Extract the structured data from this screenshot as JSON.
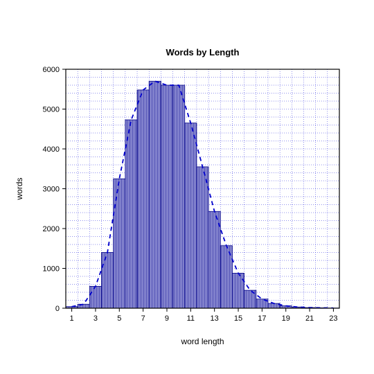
{
  "chart": {
    "type": "histogram",
    "title": "Words by Length",
    "title_fontsize": 13,
    "xlabel": "word length",
    "ylabel": "words",
    "label_fontsize": 12,
    "tick_fontsize": 11,
    "x_categories": [
      1,
      2,
      3,
      4,
      5,
      6,
      7,
      8,
      9,
      10,
      11,
      12,
      13,
      14,
      15,
      16,
      17,
      18,
      19,
      20,
      21,
      22,
      23
    ],
    "x_tick_labels": [
      1,
      3,
      5,
      7,
      9,
      11,
      13,
      15,
      17,
      19,
      21,
      23
    ],
    "values": [
      40,
      100,
      550,
      1400,
      3250,
      4730,
      5480,
      5700,
      5600,
      5600,
      4650,
      3550,
      2430,
      1570,
      880,
      450,
      230,
      120,
      60,
      30,
      15,
      10,
      5
    ],
    "ylim": [
      0,
      6000
    ],
    "ytick_step": 1000,
    "y_grid_minor": 200,
    "x_grid_minor": true,
    "background_color": "#ffffff",
    "grid_color": "#2222dd",
    "grid_dash": "1,2",
    "border_color": "#000000",
    "bar_fill": "#5a5ab8",
    "bar_stroke": "#000088",
    "bar_hatch_stroke": "#c8c8f0",
    "bar_width": 1.0,
    "line_color": "#0000cc",
    "line_dash": "6,5",
    "line_width": 1.8
  }
}
